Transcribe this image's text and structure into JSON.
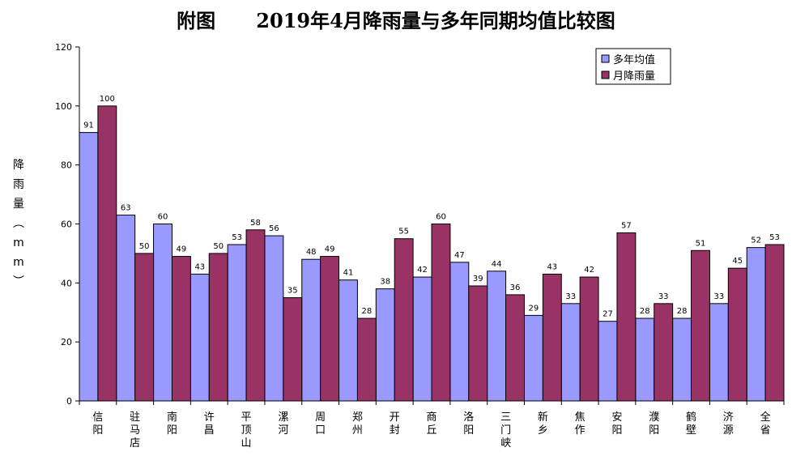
{
  "title": "附图      2019年4月降雨量与多年同期均值比较图",
  "ylabel": "降雨量（mm）",
  "chart_data": {
    "type": "bar",
    "title": "附图      2019年4月降雨量与多年同期均值比较图",
    "ylabel": "降雨量（mm）",
    "xlabel": "",
    "ylim": [
      0,
      120
    ],
    "yticks": [
      0,
      20,
      40,
      60,
      80,
      100,
      120
    ],
    "legend_position": "top-right",
    "categories": [
      "信阳",
      "驻马店",
      "南阳",
      "许昌",
      "平顶山",
      "漯河",
      "周口",
      "郑州",
      "开封",
      "商丘",
      "洛阳",
      "三门峡",
      "新乡",
      "焦作",
      "安阳",
      "濮阳",
      "鹤壁",
      "济源",
      "全省"
    ],
    "series": [
      {
        "name": "多年均值",
        "color": "#9999ff",
        "values": [
          91,
          63,
          60,
          43,
          53,
          56,
          48,
          41,
          38,
          42,
          47,
          44,
          29,
          33,
          27,
          28,
          28,
          33,
          52
        ]
      },
      {
        "name": "月降雨量",
        "color": "#993366",
        "values": [
          100,
          50,
          49,
          50,
          58,
          35,
          49,
          28,
          55,
          60,
          39,
          36,
          43,
          42,
          57,
          33,
          51,
          45,
          53
        ]
      }
    ]
  }
}
